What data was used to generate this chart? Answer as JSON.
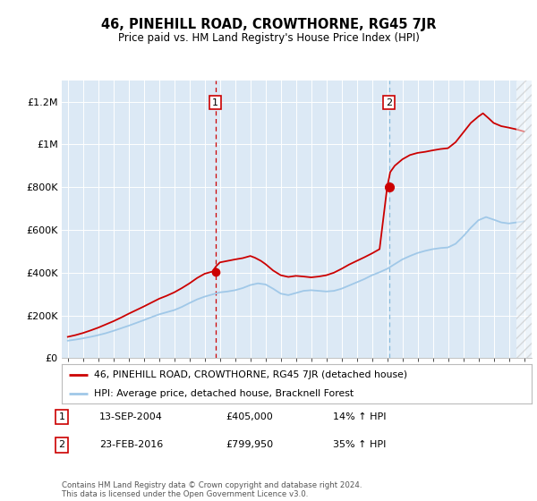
{
  "title": "46, PINEHILL ROAD, CROWTHORNE, RG45 7JR",
  "subtitle": "Price paid vs. HM Land Registry's House Price Index (HPI)",
  "ylim": [
    0,
    1300000
  ],
  "yticks": [
    0,
    200000,
    400000,
    600000,
    800000,
    1000000,
    1200000
  ],
  "ytick_labels": [
    "£0",
    "£200K",
    "£400K",
    "£600K",
    "£800K",
    "£1M",
    "£1.2M"
  ],
  "plot_bg": "#dce9f5",
  "line_color_red": "#cc0000",
  "line_color_blue": "#a0c8e8",
  "transaction1_price": 405000,
  "transaction2_price": 799950,
  "legend_label_red": "46, PINEHILL ROAD, CROWTHORNE, RG45 7JR (detached house)",
  "legend_label_blue": "HPI: Average price, detached house, Bracknell Forest",
  "footer": "Contains HM Land Registry data © Crown copyright and database right 2024.\nThis data is licensed under the Open Government Licence v3.0.",
  "hpi_years": [
    1995.0,
    1995.5,
    1996.0,
    1996.5,
    1997.0,
    1997.5,
    1998.0,
    1998.5,
    1999.0,
    1999.5,
    2000.0,
    2000.5,
    2001.0,
    2001.5,
    2002.0,
    2002.5,
    2003.0,
    2003.5,
    2004.0,
    2004.5,
    2005.0,
    2005.5,
    2006.0,
    2006.5,
    2007.0,
    2007.5,
    2008.0,
    2008.5,
    2009.0,
    2009.5,
    2010.0,
    2010.5,
    2011.0,
    2011.5,
    2012.0,
    2012.5,
    2013.0,
    2013.5,
    2014.0,
    2014.5,
    2015.0,
    2015.5,
    2016.0,
    2016.5,
    2017.0,
    2017.5,
    2018.0,
    2018.5,
    2019.0,
    2019.5,
    2020.0,
    2020.5,
    2021.0,
    2021.5,
    2022.0,
    2022.5,
    2023.0,
    2023.5,
    2024.0,
    2024.5,
    2025.0
  ],
  "hpi_values": [
    82000,
    87000,
    93000,
    100000,
    108000,
    117000,
    128000,
    140000,
    152000,
    165000,
    178000,
    192000,
    205000,
    215000,
    225000,
    240000,
    258000,
    275000,
    288000,
    298000,
    308000,
    312000,
    318000,
    328000,
    342000,
    350000,
    345000,
    325000,
    302000,
    295000,
    305000,
    315000,
    318000,
    315000,
    312000,
    315000,
    325000,
    340000,
    355000,
    370000,
    388000,
    402000,
    418000,
    440000,
    462000,
    478000,
    492000,
    502000,
    510000,
    515000,
    518000,
    535000,
    570000,
    610000,
    645000,
    660000,
    648000,
    635000,
    630000,
    635000,
    640000
  ],
  "red_years": [
    1995.0,
    1995.5,
    1996.0,
    1996.5,
    1997.0,
    1997.5,
    1998.0,
    1998.5,
    1999.0,
    1999.5,
    2000.0,
    2000.5,
    2001.0,
    2001.5,
    2002.0,
    2002.5,
    2003.0,
    2003.5,
    2004.0,
    2004.5,
    2004.75,
    2005.0,
    2005.5,
    2006.0,
    2006.5,
    2007.0,
    2007.3,
    2007.7,
    2008.0,
    2008.5,
    2009.0,
    2009.5,
    2010.0,
    2010.5,
    2011.0,
    2011.5,
    2012.0,
    2012.5,
    2013.0,
    2013.5,
    2014.0,
    2014.5,
    2015.0,
    2015.5,
    2016.0,
    2016.2,
    2016.5,
    2017.0,
    2017.5,
    2018.0,
    2018.5,
    2019.0,
    2019.5,
    2020.0,
    2020.5,
    2021.0,
    2021.5,
    2022.0,
    2022.3,
    2022.7,
    2023.0,
    2023.5,
    2024.0,
    2024.5,
    2025.0
  ],
  "red_values": [
    100000,
    108000,
    118000,
    130000,
    143000,
    158000,
    173000,
    190000,
    208000,
    225000,
    242000,
    260000,
    278000,
    292000,
    308000,
    328000,
    350000,
    375000,
    395000,
    405000,
    430000,
    448000,
    455000,
    462000,
    468000,
    478000,
    470000,
    455000,
    440000,
    410000,
    388000,
    380000,
    385000,
    382000,
    378000,
    382000,
    388000,
    400000,
    418000,
    438000,
    455000,
    472000,
    490000,
    510000,
    799950,
    870000,
    900000,
    930000,
    950000,
    960000,
    965000,
    972000,
    978000,
    982000,
    1010000,
    1055000,
    1100000,
    1130000,
    1145000,
    1120000,
    1100000,
    1085000,
    1078000,
    1070000,
    1060000
  ],
  "t1_x": 2004.7,
  "t2_x": 2016.12,
  "xmin": 1994.6,
  "xmax": 2025.5
}
